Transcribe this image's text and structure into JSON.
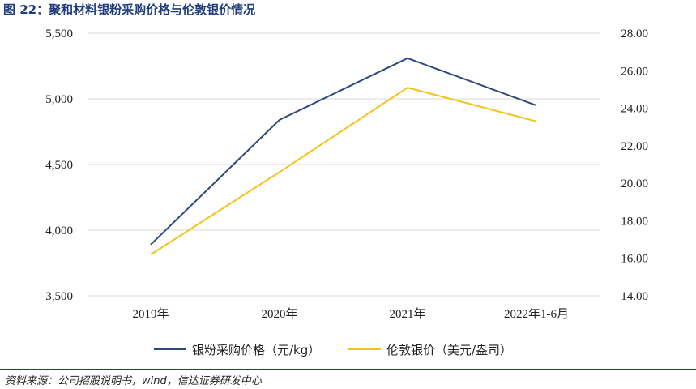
{
  "header": {
    "title": "图 22：聚和材料银粉采购价格与伦敦银价情况"
  },
  "footer": {
    "source": "资料来源：公司招股说明书，wind，信达证券研发中心"
  },
  "chart_data": {
    "type": "line",
    "title": "",
    "categories": [
      "2019年",
      "2020年",
      "2021年",
      "2022年1-6月"
    ],
    "y_left": {
      "min": 3500,
      "max": 5500,
      "ticks": [
        "3,500",
        "4,000",
        "4,500",
        "5,000",
        "5,500"
      ]
    },
    "y_right": {
      "min": 14,
      "max": 28,
      "ticks": [
        "14.00",
        "16.00",
        "18.00",
        "20.00",
        "22.00",
        "24.00",
        "26.00",
        "28.00"
      ]
    },
    "series": [
      {
        "name": "银粉采购价格（元/kg）",
        "axis": "left",
        "color": "#2e4a7d",
        "values": [
          3890,
          4840,
          5310,
          4950
        ]
      },
      {
        "name": "伦敦银价（美元/盎司）",
        "axis": "right",
        "color": "#f5c21a",
        "values": [
          16.2,
          20.6,
          25.1,
          23.3
        ]
      }
    ],
    "grid": true,
    "legend": "bottom"
  }
}
